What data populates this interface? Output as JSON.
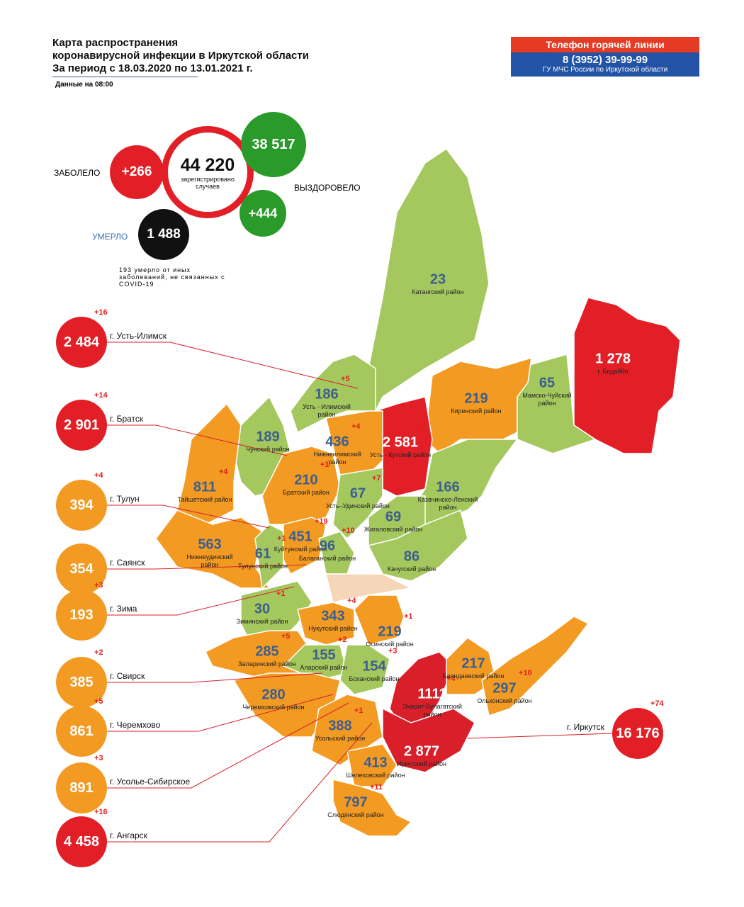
{
  "header": {
    "title_lines": [
      "Карта распространения",
      "коронавирусной инфекции в Иркутской области",
      "За период с 18.03.2020 по 13.01.2021 г."
    ],
    "data_time": "Данные на 08:00"
  },
  "hotline": {
    "title": "Телефон горячей линии",
    "phone": "8 (3952) 39-99-99",
    "org": "ГУ МЧС России по Иркутской области"
  },
  "summary": {
    "infected_label": "ЗАБОЛЕЛО",
    "new_cases": "+266",
    "total": "44 220",
    "total_caption": "зарегистрировано случаев",
    "recovered": "38 517",
    "recovered_new": "+444",
    "recovered_label": "ВЫЗДОРОВЕЛО",
    "deaths_label": "УМЕРЛО",
    "deaths": "1 488",
    "deaths_note": "193 умерло от иных заболеваний, не связанных с COVID-19"
  },
  "cities": [
    {
      "name": "г. Усть-Илимск",
      "total": "2 484",
      "delta": "+16"
    },
    {
      "name": "г. Братск",
      "total": "2 901",
      "delta": "+14"
    },
    {
      "name": "г. Тулун",
      "total": "394",
      "delta": "+4"
    },
    {
      "name": "г. Саянск",
      "total": "354"
    },
    {
      "name": "г. Зима",
      "total": "193",
      "delta": "+3"
    },
    {
      "name": "г. Свирск",
      "total": "385",
      "delta": "+2"
    },
    {
      "name": "г. Черемхово",
      "total": "861",
      "delta": "+5"
    },
    {
      "name": "г. Усолье-Сибирское",
      "total": "891",
      "delta": "+3"
    },
    {
      "name": "г. Ангарск",
      "total": "4 458",
      "delta": "+16"
    },
    {
      "name": "г. Иркутск",
      "total": "16 176",
      "delta": "+74"
    }
  ],
  "districts": [
    {
      "name": "Катангский район",
      "value": "23"
    },
    {
      "name": "г. Бодайбо",
      "value": "1 278"
    },
    {
      "name": "Мамско-Чуйский район",
      "value": "65"
    },
    {
      "name": "Киренский район",
      "value": "219"
    },
    {
      "name": "Усть - Кутский район",
      "value": "2 581",
      "delta": "+6"
    },
    {
      "name": "Нижнеилимский район",
      "value": "436",
      "delta": "+4"
    },
    {
      "name": "Усть - Илимский район",
      "value": "186",
      "delta": "+5"
    },
    {
      "name": "Чунский район",
      "value": "189"
    },
    {
      "name": "Братский район",
      "value": "210",
      "delta": "+1"
    },
    {
      "name": "Тайшетский район",
      "value": "811",
      "delta": "+4"
    },
    {
      "name": "Усть–Удинский район",
      "value": "67",
      "delta": "+7"
    },
    {
      "name": "Казачинско-Ленский район",
      "value": "166"
    },
    {
      "name": "Жигаловский район",
      "value": "69"
    },
    {
      "name": "Нижнеудинский район",
      "value": "563"
    },
    {
      "name": "Куйтунский район",
      "value": "451",
      "delta": "+19"
    },
    {
      "name": "Тулунский район",
      "value": "61",
      "delta": "+1"
    },
    {
      "name": "Балаганский район",
      "value": "96",
      "delta": "+10"
    },
    {
      "name": "Качугский район",
      "value": "86"
    },
    {
      "name": "Зиминский район",
      "value": "30",
      "delta": "+1"
    },
    {
      "name": "Нукутский район",
      "value": "343",
      "delta": "+4"
    },
    {
      "name": "Осинский район",
      "value": "219",
      "delta": "+1"
    },
    {
      "name": "Заларинский район",
      "value": "285",
      "delta": "+5"
    },
    {
      "name": "Аларский район",
      "value": "155",
      "delta": "+2"
    },
    {
      "name": "Боханский район",
      "value": "154",
      "delta": "+3"
    },
    {
      "name": "Эхирит-Булагатский район",
      "value": "1111",
      "delta": "+4"
    },
    {
      "name": "Баяндаевский район",
      "value": "217"
    },
    {
      "name": "Ольхонский район",
      "value": "297",
      "delta": "+10"
    },
    {
      "name": "Черемховский район",
      "value": "280"
    },
    {
      "name": "Усольский район",
      "value": "388",
      "delta": "+1"
    },
    {
      "name": "Иркутский район",
      "value": "2 877",
      "delta": "+26"
    },
    {
      "name": "Шелеховский район",
      "value": "413",
      "delta": "+4"
    },
    {
      "name": "Слюдянский район",
      "value": "797",
      "delta": "+11"
    }
  ]
}
